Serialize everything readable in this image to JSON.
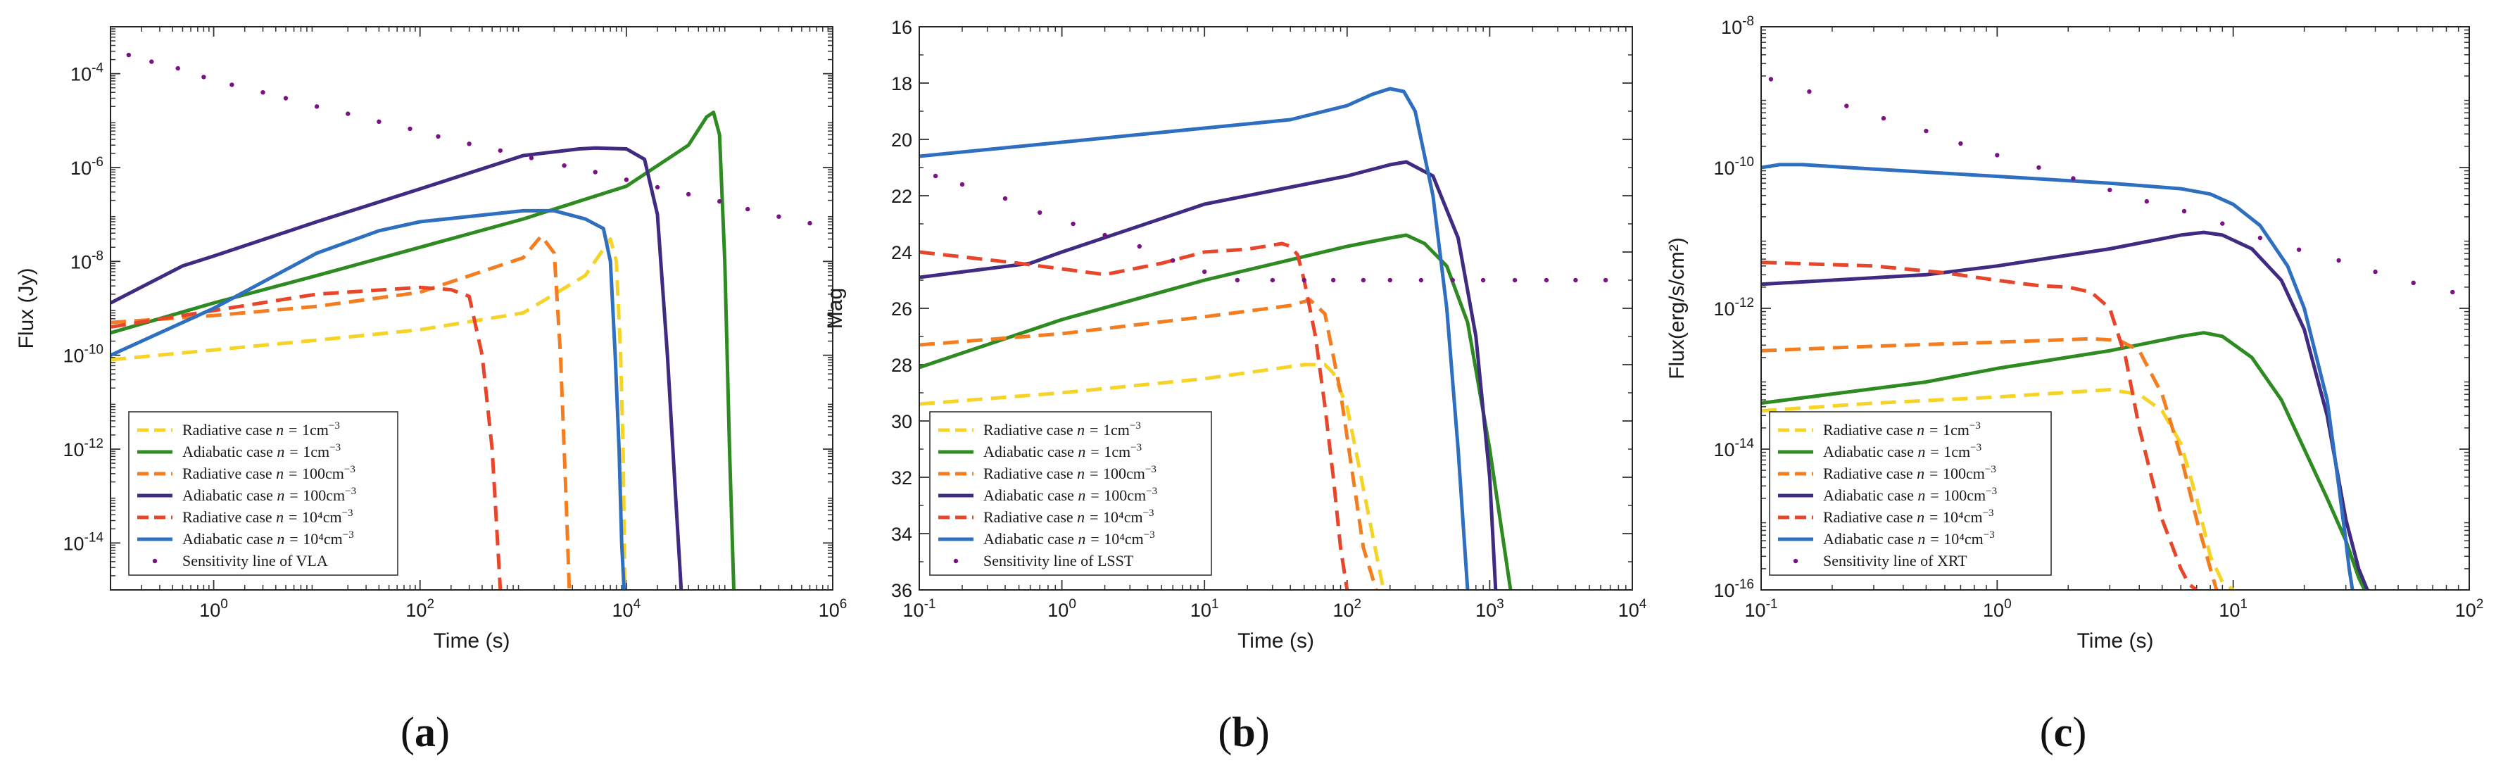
{
  "chart_data": [
    {
      "type": "line",
      "panel": "a",
      "xlabel": "Time (s)",
      "ylabel": "Flux (Jy)",
      "xscale": "log",
      "yscale": "log",
      "xlim": [
        0.1,
        1000000
      ],
      "ylim": [
        1e-15,
        0.001
      ],
      "x_ticks": [
        {
          "v": 1,
          "base": "10",
          "exp": "0"
        },
        {
          "v": 100,
          "base": "10",
          "exp": "2"
        },
        {
          "v": 10000,
          "base": "10",
          "exp": "4"
        },
        {
          "v": 1000000,
          "base": "10",
          "exp": "6"
        }
      ],
      "y_ticks": [
        {
          "v": 0.0001,
          "base": "10",
          "exp": "-4"
        },
        {
          "v": 1e-06,
          "base": "10",
          "exp": "-6"
        },
        {
          "v": 1e-08,
          "base": "10",
          "exp": "-8"
        },
        {
          "v": 1e-10,
          "base": "10",
          "exp": "-10"
        },
        {
          "v": 1e-12,
          "base": "10",
          "exp": "-12"
        },
        {
          "v": 1e-14,
          "base": "10",
          "exp": "-14"
        }
      ],
      "legend_position": "bottom-left",
      "series": [
        {
          "name": "Radiative case n = 1cm^-3",
          "label": "Radiative case ",
          "unit": "1cm",
          "sup": "−3",
          "color": "#f5d327",
          "style": "dashed",
          "x": [
            0.1,
            1,
            10,
            100,
            1000,
            4000,
            7000,
            8000,
            8800,
            9300,
            9700
          ],
          "y": [
            8e-11,
            1.3e-10,
            2.1e-10,
            3.5e-10,
            8e-10,
            5e-09,
            3e-08,
            1e-08,
            1e-10,
            1e-12,
            1e-15
          ]
        },
        {
          "name": "Adiabatic case n = 1cm^-3",
          "label": "Adiabatic case ",
          "unit": "1cm",
          "sup": "−3",
          "color": "#2e8b22",
          "style": "solid",
          "x": [
            0.1,
            1,
            10,
            100,
            1000,
            10000,
            40000,
            60000,
            70000,
            80000,
            90000,
            100000,
            110000
          ],
          "y": [
            3e-10,
            1.3e-09,
            5e-09,
            2e-08,
            8e-08,
            4e-07,
            3e-06,
            1.2e-05,
            1.5e-05,
            5e-06,
            1e-08,
            1e-12,
            1e-15
          ]
        },
        {
          "name": "Radiative case n = 100cm^-3",
          "label": "Radiative case ",
          "unit": "100cm",
          "sup": "−3",
          "color": "#f47d20",
          "style": "dashed",
          "x": [
            0.1,
            1,
            10,
            100,
            1000,
            1500,
            2000,
            2300,
            2600,
            2800
          ],
          "y": [
            5e-10,
            7e-10,
            1.1e-09,
            2.2e-09,
            1.2e-08,
            3.5e-08,
            1.5e-08,
            1e-10,
            1e-13,
            1e-15
          ]
        },
        {
          "name": "Adiabatic case n = 100cm^-3",
          "label": "Adiabatic case ",
          "unit": "100cm",
          "sup": "−3",
          "color": "#3f2b82",
          "style": "solid",
          "x": [
            0.1,
            0.5,
            1,
            10,
            100,
            1000,
            3500,
            5000,
            10000,
            15000,
            20000,
            25000,
            30000,
            34000
          ],
          "y": [
            1.3e-09,
            8e-09,
            1.3e-08,
            7e-08,
            3.5e-07,
            1.8e-06,
            2.5e-06,
            2.6e-06,
            2.5e-06,
            1.5e-06,
            1e-07,
            1e-10,
            1e-13,
            1e-15
          ]
        },
        {
          "name": "Radiative case n = 10^4cm^-3",
          "label": "Radiative case ",
          "unit": "10⁴cm",
          "sup": "−3",
          "color": "#e8462a",
          "style": "dashed",
          "x": [
            0.1,
            1,
            10,
            100,
            200,
            300,
            400,
            500,
            600
          ],
          "y": [
            4e-10,
            9e-10,
            2e-09,
            2.8e-09,
            2.5e-09,
            1.8e-09,
            1e-10,
            1e-12,
            1e-15
          ]
        },
        {
          "name": "Adiabatic case n = 10^4cm^-3",
          "label": "Adiabatic case ",
          "unit": "10⁴cm",
          "sup": "−3",
          "color": "#2f6fbf",
          "style": "solid",
          "x": [
            0.1,
            1,
            10,
            40,
            100,
            1000,
            2000,
            4000,
            6000,
            7000,
            7800,
            8500,
            9000,
            9500
          ],
          "y": [
            1e-10,
            1e-09,
            1.5e-08,
            4.5e-08,
            7e-08,
            1.2e-07,
            1.2e-07,
            8e-08,
            5e-08,
            1e-08,
            1e-10,
            1e-12,
            1e-14,
            1e-15
          ]
        }
      ],
      "sensitivity": {
        "name": "Sensitivity line of VLA",
        "color": "#7b1283",
        "x": [
          0.15,
          0.25,
          0.45,
          0.8,
          1.5,
          3,
          5,
          10,
          20,
          40,
          80,
          150,
          300,
          600,
          1200,
          2500,
          5000,
          10000,
          20000,
          40000,
          80000,
          150000,
          300000,
          600000
        ],
        "y": [
          0.00025,
          0.00018,
          0.00013,
          8.5e-05,
          5.8e-05,
          4e-05,
          3e-05,
          2e-05,
          1.4e-05,
          9.5e-06,
          6.7e-06,
          4.6e-06,
          3.2e-06,
          2.3e-06,
          1.6e-06,
          1.1e-06,
          8e-07,
          5.5e-07,
          3.8e-07,
          2.7e-07,
          1.9e-07,
          1.3e-07,
          9e-08,
          6.5e-08
        ]
      }
    },
    {
      "type": "line",
      "panel": "b",
      "xlabel": "Time (s)",
      "ylabel": "Mag",
      "xscale": "log",
      "yscale": "linear",
      "yreversed": true,
      "xlim": [
        0.1,
        10000
      ],
      "ylim": [
        16,
        36
      ],
      "x_ticks": [
        {
          "v": 0.1,
          "base": "10",
          "exp": "-1"
        },
        {
          "v": 1,
          "base": "10",
          "exp": "0"
        },
        {
          "v": 10,
          "base": "10",
          "exp": "1"
        },
        {
          "v": 100,
          "base": "10",
          "exp": "2"
        },
        {
          "v": 1000,
          "base": "10",
          "exp": "3"
        },
        {
          "v": 10000,
          "base": "10",
          "exp": "4"
        }
      ],
      "y_ticks": [
        {
          "v": 16,
          "text": "16"
        },
        {
          "v": 18,
          "text": "18"
        },
        {
          "v": 20,
          "text": "20"
        },
        {
          "v": 22,
          "text": "22"
        },
        {
          "v": 24,
          "text": "24"
        },
        {
          "v": 26,
          "text": "26"
        },
        {
          "v": 28,
          "text": "28"
        },
        {
          "v": 30,
          "text": "30"
        },
        {
          "v": 32,
          "text": "32"
        },
        {
          "v": 34,
          "text": "34"
        },
        {
          "v": 36,
          "text": "36"
        }
      ],
      "legend_position": "bottom-left",
      "series": [
        {
          "name": "Radiative case n = 1cm^-3",
          "label": "Radiative case ",
          "unit": "1cm",
          "sup": "−3",
          "color": "#f5d327",
          "style": "dashed",
          "x": [
            0.1,
            1,
            10,
            50,
            70,
            80,
            100,
            120,
            150,
            180
          ],
          "y": [
            29.4,
            29,
            28.5,
            28,
            28,
            28.3,
            29.5,
            31.5,
            34,
            36
          ]
        },
        {
          "name": "Adiabatic case n = 1cm^-3",
          "label": "Adiabatic case ",
          "unit": "1cm",
          "sup": "−3",
          "color": "#2e8b22",
          "style": "solid",
          "x": [
            0.1,
            1,
            10,
            100,
            200,
            260,
            350,
            500,
            700,
            1000,
            1400
          ],
          "y": [
            28.1,
            26.4,
            25,
            23.8,
            23.5,
            23.4,
            23.7,
            24.5,
            26.5,
            31,
            36
          ]
        },
        {
          "name": "Radiative case n = 100cm^-3",
          "label": "Radiative case ",
          "unit": "100cm",
          "sup": "−3",
          "color": "#f47d20",
          "style": "dashed",
          "x": [
            0.1,
            1,
            10,
            40,
            55,
            70,
            90,
            110,
            130,
            160
          ],
          "y": [
            27.3,
            26.9,
            26.3,
            25.9,
            25.7,
            26.2,
            29,
            32,
            34.5,
            36
          ]
        },
        {
          "name": "Adiabatic case n = 100cm^-3",
          "label": "Adiabatic case ",
          "unit": "100cm",
          "sup": "−3",
          "color": "#3f2b82",
          "style": "solid",
          "x": [
            0.1,
            0.6,
            1,
            10,
            100,
            200,
            260,
            400,
            600,
            800,
            1000,
            1100
          ],
          "y": [
            24.9,
            24.4,
            24,
            22.3,
            21.3,
            20.9,
            20.8,
            21.3,
            23.5,
            27,
            32,
            36
          ]
        },
        {
          "name": "Radiative case n = 10^4cm^-3",
          "label": "Radiative case ",
          "unit": "10⁴cm",
          "sup": "−3",
          "color": "#e8462a",
          "style": "dashed",
          "x": [
            0.1,
            0.5,
            1,
            2,
            5,
            10,
            20,
            35,
            40,
            45,
            50,
            60,
            70,
            80,
            90,
            100
          ],
          "y": [
            24,
            24.4,
            24.6,
            24.8,
            24.4,
            24,
            23.9,
            23.7,
            23.8,
            24.1,
            25,
            27,
            29.5,
            32,
            34.5,
            36
          ]
        },
        {
          "name": "Adiabatic case n = 10^4cm^-3",
          "label": "Adiabatic case ",
          "unit": "10⁴cm",
          "sup": "−3",
          "color": "#2f6fbf",
          "style": "solid",
          "x": [
            0.1,
            1,
            10,
            40,
            100,
            150,
            200,
            250,
            300,
            400,
            500,
            600,
            700
          ],
          "y": [
            20.6,
            20.1,
            19.6,
            19.3,
            18.8,
            18.4,
            18.2,
            18.3,
            19,
            22,
            26,
            31,
            36
          ]
        }
      ],
      "sensitivity": {
        "name": "Sensitivity line of LSST",
        "color": "#7b1283",
        "x": [
          0.13,
          0.2,
          0.4,
          0.7,
          1.2,
          2,
          3.5,
          6,
          10,
          17,
          30,
          50,
          80,
          130,
          200,
          330,
          550,
          900,
          1500,
          2500,
          4000,
          6500
        ],
        "y": [
          21.3,
          21.6,
          22.1,
          22.6,
          23,
          23.4,
          23.8,
          24.3,
          24.7,
          25,
          25,
          25,
          25,
          25,
          25,
          25,
          25,
          25,
          25,
          25,
          25,
          25
        ]
      }
    },
    {
      "type": "line",
      "panel": "c",
      "xlabel": "Time (s)",
      "ylabel": "Flux(erg/s/cm²)",
      "xscale": "log",
      "yscale": "log",
      "xlim": [
        0.1,
        100
      ],
      "ylim": [
        1e-16,
        1e-08
      ],
      "x_ticks": [
        {
          "v": 0.1,
          "base": "10",
          "exp": "-1"
        },
        {
          "v": 1,
          "base": "10",
          "exp": "0"
        },
        {
          "v": 10,
          "base": "10",
          "exp": "1"
        },
        {
          "v": 100,
          "base": "10",
          "exp": "2"
        }
      ],
      "y_ticks": [
        {
          "v": 1e-08,
          "base": "10",
          "exp": "-8"
        },
        {
          "v": 1e-10,
          "base": "10",
          "exp": "-10"
        },
        {
          "v": 1e-12,
          "base": "10",
          "exp": "-12"
        },
        {
          "v": 1e-14,
          "base": "10",
          "exp": "-14"
        },
        {
          "v": 1e-16,
          "base": "10",
          "exp": "-16"
        }
      ],
      "legend_position": "bottom-left",
      "series": [
        {
          "name": "Radiative case n = 1cm^-3",
          "label": "Radiative case ",
          "unit": "1cm",
          "sup": "−3",
          "color": "#f5d327",
          "style": "dashed",
          "x": [
            0.1,
            0.3,
            1,
            3,
            4,
            5,
            6,
            7,
            8,
            9,
            10
          ],
          "y": [
            3.5e-14,
            4.5e-14,
            5.5e-14,
            7e-14,
            6e-14,
            3.5e-14,
            1.2e-14,
            2e-15,
            3e-16,
            1.3e-16,
            1e-16
          ]
        },
        {
          "name": "Adiabatic case n = 1cm^-3",
          "label": "Adiabatic case ",
          "unit": "1cm",
          "sup": "−3",
          "color": "#2e8b22",
          "style": "solid",
          "x": [
            0.1,
            0.5,
            1,
            3,
            6,
            7.5,
            9,
            12,
            16,
            20,
            25,
            30,
            34,
            36
          ],
          "y": [
            4.5e-14,
            9e-14,
            1.4e-13,
            2.5e-13,
            4e-13,
            4.5e-13,
            4e-13,
            2e-13,
            5e-14,
            1e-14,
            2e-15,
            5e-16,
            1.5e-16,
            1e-16
          ]
        },
        {
          "name": "Radiative case n = 100cm^-3",
          "label": "Radiative case ",
          "unit": "100cm",
          "sup": "−3",
          "color": "#f47d20",
          "style": "dashed",
          "x": [
            0.1,
            0.3,
            1,
            2.5,
            3.3,
            4,
            5,
            6,
            7,
            8,
            8.5
          ],
          "y": [
            2.5e-13,
            2.9e-13,
            3.3e-13,
            3.7e-13,
            3.5e-13,
            2.5e-13,
            6e-14,
            8e-15,
            1e-15,
            2e-16,
            1e-16
          ]
        },
        {
          "name": "Adiabatic case n = 100cm^-3",
          "label": "Adiabatic case ",
          "unit": "100cm",
          "sup": "−3",
          "color": "#3f2b82",
          "style": "solid",
          "x": [
            0.1,
            0.5,
            1,
            3,
            6,
            7.5,
            9,
            12,
            16,
            20,
            25,
            30,
            34,
            37
          ],
          "y": [
            2.2e-12,
            3e-12,
            4e-12,
            7e-12,
            1.1e-11,
            1.2e-11,
            1.1e-11,
            7e-12,
            2.5e-12,
            5e-13,
            3e-14,
            1e-15,
            2e-16,
            1e-16
          ]
        },
        {
          "name": "Radiative case n = 10^4cm^-3",
          "label": "Radiative case ",
          "unit": "10⁴cm",
          "sup": "−3",
          "color": "#e8462a",
          "style": "dashed",
          "x": [
            0.1,
            0.3,
            0.6,
            1,
            1.5,
            2,
            2.5,
            3,
            3.5,
            4,
            5,
            6,
            6.5,
            7
          ],
          "y": [
            4.5e-12,
            4e-12,
            3.2e-12,
            2.5e-12,
            2.1e-12,
            2e-12,
            1.7e-12,
            1e-12,
            2e-13,
            2e-14,
            1e-15,
            2e-16,
            1.2e-16,
            1e-16
          ]
        },
        {
          "name": "Adiabatic case n = 10^4cm^-3",
          "label": "Adiabatic case ",
          "unit": "10⁴cm",
          "sup": "−3",
          "color": "#2f6fbf",
          "style": "solid",
          "x": [
            0.1,
            0.12,
            0.15,
            0.3,
            1,
            3,
            6,
            8,
            10,
            13,
            17,
            20,
            25,
            28,
            30,
            31,
            32
          ],
          "y": [
            1e-10,
            1.1e-10,
            1.1e-10,
            9.5e-11,
            7.5e-11,
            6e-11,
            5e-11,
            4.2e-11,
            3e-11,
            1.5e-11,
            4e-12,
            1e-12,
            5e-14,
            3e-15,
            5e-16,
            2e-16,
            1e-16
          ]
        }
      ],
      "sensitivity": {
        "name": "Sensitivity line of XRT",
        "color": "#7b1283",
        "x": [
          0.11,
          0.16,
          0.23,
          0.33,
          0.5,
          0.7,
          1,
          1.5,
          2.1,
          3,
          4.3,
          6.2,
          9,
          13,
          19,
          28,
          40,
          58,
          85
        ],
        "y": [
          1.8e-09,
          1.2e-09,
          7.5e-10,
          5e-10,
          3.3e-10,
          2.2e-10,
          1.5e-10,
          1e-10,
          7e-11,
          4.8e-11,
          3.3e-11,
          2.4e-11,
          1.6e-11,
          1e-11,
          6.8e-12,
          4.8e-12,
          3.3e-12,
          2.3e-12,
          1.7e-12
        ]
      }
    }
  ],
  "panel_labels": [
    {
      "open": "(",
      "letter": "a",
      "close": ")"
    },
    {
      "open": "(",
      "letter": "b",
      "close": ")"
    },
    {
      "open": "(",
      "letter": "c",
      "close": ")"
    }
  ],
  "legend_eq": "n = "
}
